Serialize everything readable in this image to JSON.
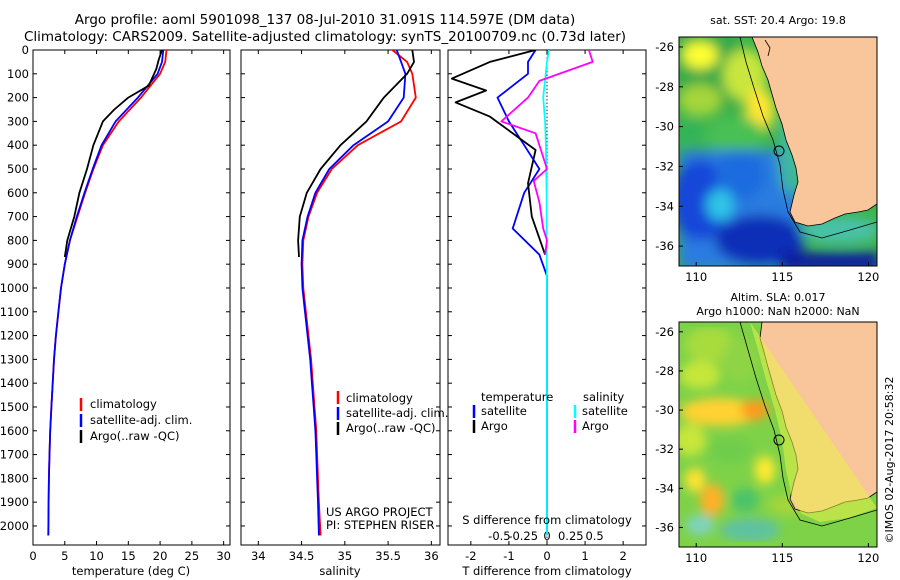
{
  "header": {
    "title_line1": "Argo profile: aoml 5901098_137 08-Jul-2010 31.091S 114.597E (DM data)",
    "title_line2": "Climatology: CARS2009. Satellite-adjusted climatology: synTS_20100709.nc (0.73d later)"
  },
  "colors": {
    "climatology": "#ff0000",
    "satellite": "#0000ff",
    "argo": "#000000",
    "salinity_satellite": "#00ffff",
    "salinity_argo": "#ff00ff",
    "land": "#f9c59a"
  },
  "chart_data": [
    {
      "id": "temperature",
      "type": "line",
      "xlabel": "temperature (deg C)",
      "ylabel": "",
      "xlim": [
        0,
        31
      ],
      "ylim": [
        2080,
        0
      ],
      "xticks": [
        "0",
        "5",
        "10",
        "15",
        "20",
        "25",
        "30"
      ],
      "yticks": [
        "0",
        "100",
        "200",
        "300",
        "400",
        "500",
        "600",
        "700",
        "800",
        "900",
        "1000",
        "1100",
        "1200",
        "1300",
        "1400",
        "1500",
        "1600",
        "1700",
        "1800",
        "1900",
        "2000"
      ],
      "legend": [
        "climatology",
        "satellite-adj. clim.",
        "Argo(..raw -QC)"
      ],
      "series": [
        {
          "name": "climatology",
          "color": "#ff0000",
          "x": [
            21.0,
            20.8,
            20.0,
            17.0,
            13.5,
            11.0,
            9.5,
            8.2,
            7.0,
            5.8,
            5.0,
            4.4,
            4.0,
            3.6,
            3.3,
            3.1,
            2.9,
            2.7,
            2.6,
            2.5,
            2.45,
            2.4
          ],
          "y": [
            0,
            50,
            100,
            200,
            300,
            400,
            500,
            600,
            700,
            800,
            900,
            1000,
            1100,
            1200,
            1300,
            1400,
            1500,
            1600,
            1700,
            1800,
            1900,
            2040
          ]
        },
        {
          "name": "satellite-adj. clim.",
          "color": "#0000ff",
          "x": [
            20.5,
            20.3,
            19.6,
            16.5,
            13.0,
            10.8,
            9.4,
            8.1,
            6.9,
            5.8,
            5.0,
            4.4,
            4.0,
            3.6,
            3.3,
            3.1,
            2.9,
            2.7,
            2.6,
            2.5,
            2.45,
            2.4
          ],
          "y": [
            0,
            50,
            100,
            200,
            300,
            400,
            500,
            600,
            700,
            800,
            900,
            1000,
            1100,
            1200,
            1300,
            1400,
            1500,
            1600,
            1700,
            1800,
            1900,
            2040
          ]
        },
        {
          "name": "Argo(..raw -QC)",
          "color": "#000000",
          "x": [
            20.3,
            19.8,
            19.4,
            18.2,
            15.0,
            12.8,
            11.0,
            9.5,
            8.5,
            7.3,
            6.5,
            5.4,
            5.0
          ],
          "y": [
            0,
            40,
            80,
            150,
            200,
            250,
            300,
            400,
            500,
            600,
            700,
            800,
            870
          ]
        }
      ]
    },
    {
      "id": "salinity",
      "type": "line",
      "xlabel": "salinity",
      "ylabel": "",
      "xlim": [
        33.8,
        36.1
      ],
      "ylim": [
        2080,
        0
      ],
      "xticks": [
        "34",
        "34.5",
        "35",
        "35.5",
        "36"
      ],
      "legend": [
        "climatology",
        "satellite-adj. clim.",
        "Argo(..raw -QC)"
      ],
      "annotations": [
        "US ARGO PROJECT",
        "PI: STEPHEN RISER"
      ],
      "series": [
        {
          "name": "climatology",
          "color": "#ff0000",
          "x": [
            35.55,
            35.72,
            35.78,
            35.82,
            35.65,
            35.15,
            34.85,
            34.68,
            34.58,
            34.52,
            34.51,
            34.52,
            34.55,
            34.58,
            34.61,
            34.63,
            34.65,
            34.67,
            34.68,
            34.69,
            34.7,
            34.72
          ],
          "y": [
            0,
            50,
            100,
            200,
            300,
            400,
            500,
            600,
            700,
            800,
            900,
            1000,
            1100,
            1200,
            1300,
            1400,
            1500,
            1600,
            1700,
            1800,
            1900,
            2040
          ]
        },
        {
          "name": "satellite-adj. clim.",
          "color": "#0000ff",
          "x": [
            35.6,
            35.65,
            35.7,
            35.68,
            35.5,
            35.1,
            34.82,
            34.66,
            34.57,
            34.51,
            34.5,
            34.51,
            34.54,
            34.57,
            34.6,
            34.62,
            34.64,
            34.66,
            34.67,
            34.68,
            34.69,
            34.7
          ],
          "y": [
            0,
            50,
            100,
            200,
            300,
            400,
            500,
            600,
            700,
            800,
            900,
            1000,
            1100,
            1200,
            1300,
            1400,
            1500,
            1600,
            1700,
            1800,
            1900,
            2040
          ]
        },
        {
          "name": "Argo(..raw -QC)",
          "color": "#000000",
          "x": [
            35.78,
            35.8,
            35.72,
            35.45,
            35.25,
            34.95,
            34.72,
            34.56,
            34.48,
            34.46,
            34.47
          ],
          "y": [
            0,
            50,
            100,
            200,
            300,
            400,
            500,
            600,
            700,
            800,
            870
          ]
        }
      ]
    },
    {
      "id": "difference",
      "type": "line",
      "xlabel": "T difference from climatology",
      "x2label": "S difference from climatology",
      "xlim": [
        -2.6,
        2.6
      ],
      "ylim": [
        2080,
        0
      ],
      "xticks": [
        "-2",
        "-1",
        "0",
        "1",
        "2"
      ],
      "x2ticks": [
        "-0.5",
        "-0.25",
        "0",
        "0.25",
        "0.5"
      ],
      "legend_left_title": "temperature",
      "legend_right_title": "salinity",
      "legend": [
        "satellite",
        "Argo",
        "satellite",
        "Argo"
      ],
      "series": [
        {
          "name": "satellite",
          "group": "temperature",
          "color": "#0000ff",
          "x": [
            -0.3,
            -0.5,
            -0.5,
            -1.3,
            -1.0,
            -0.6,
            -0.2,
            -0.6,
            -0.9,
            -0.2,
            0.0,
            0.0,
            0.0,
            0.0,
            0.0,
            0.0,
            0.0
          ],
          "y": [
            0,
            50,
            100,
            200,
            300,
            400,
            500,
            600,
            750,
            860,
            950,
            1100,
            1300,
            1500,
            1700,
            1900,
            2040
          ]
        },
        {
          "name": "Argo",
          "group": "temperature",
          "color": "#000000",
          "x": [
            -0.3,
            -1.5,
            -2.5,
            -1.6,
            -2.4,
            -1.5,
            -0.3,
            -0.5,
            -0.4,
            -0.05
          ],
          "y": [
            0,
            50,
            120,
            170,
            220,
            280,
            420,
            560,
            700,
            860
          ]
        },
        {
          "name": "satellite",
          "group": "salinity",
          "color": "#00ffff",
          "x": [
            0.05,
            0.0,
            -0.1,
            -0.05,
            -0.03,
            -0.02,
            -0.01,
            -0.01,
            0.0,
            0.0,
            0.0,
            0.0,
            0.0,
            0.0
          ],
          "y": [
            0,
            50,
            200,
            300,
            400,
            500,
            600,
            800,
            1000,
            1200,
            1400,
            1600,
            1800,
            2040
          ]
        },
        {
          "name": "Argo",
          "group": "salinity",
          "color": "#ff00ff",
          "x": [
            1.1,
            1.2,
            -0.2,
            -0.5,
            -1.2,
            -0.3,
            0.0,
            -0.35,
            -0.2,
            -0.1,
            0.0,
            -0.05
          ],
          "y": [
            0,
            50,
            130,
            200,
            300,
            350,
            500,
            550,
            640,
            750,
            800,
            860
          ]
        }
      ]
    },
    {
      "id": "sst_map",
      "type": "heatmap",
      "title": "sat. SST: 20.4  Argo: 19.8",
      "xlim": [
        109,
        120.5
      ],
      "ylim": [
        -37,
        -25.5
      ],
      "xticks": [
        "110",
        "115",
        "120"
      ],
      "yticks": [
        "-26",
        "-28",
        "-30",
        "-32",
        "-34",
        "-36"
      ],
      "marker": {
        "lon": 114.597,
        "lat": -31.091
      }
    },
    {
      "id": "sla_map",
      "type": "heatmap",
      "title_line1": "Altim. SLA: 0.017",
      "title_line2": "Argo h1000: NaN h2000: NaN",
      "xlim": [
        109,
        120.5
      ],
      "ylim": [
        -37,
        -25.5
      ],
      "xticks": [
        "110",
        "115",
        "120"
      ],
      "yticks": [
        "-26",
        "-28",
        "-30",
        "-32",
        "-34",
        "-36"
      ],
      "marker": {
        "lon": 114.597,
        "lat": -31.091
      }
    }
  ],
  "footer": {
    "credit": "©IMOS 02-Aug-2017 20:58:32"
  }
}
